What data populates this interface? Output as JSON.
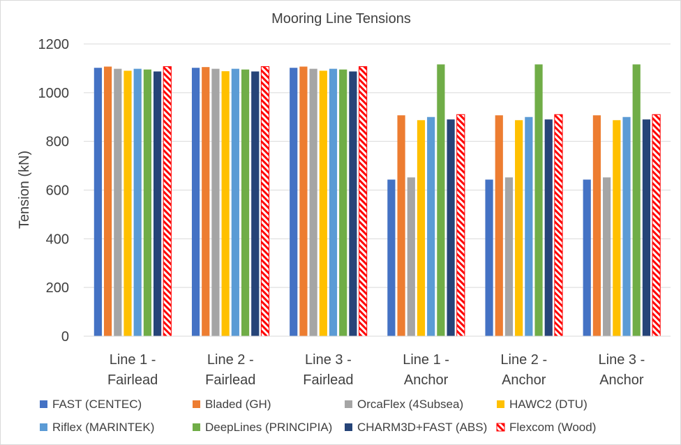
{
  "chart_data": {
    "type": "bar",
    "title": "Mooring Line Tensions",
    "xlabel": "",
    "ylabel": "Tension (kN)",
    "ylim": [
      0,
      1200
    ],
    "yticks": [
      0,
      200,
      400,
      600,
      800,
      1000,
      1200
    ],
    "grid": true,
    "legend_position": "bottom",
    "categories": [
      [
        "Line 1 -",
        "Fairlead"
      ],
      [
        "Line 2 -",
        "Fairlead"
      ],
      [
        "Line 3 -",
        "Fairlead"
      ],
      [
        "Line 1 -",
        "Anchor"
      ],
      [
        "Line 2 -",
        "Anchor"
      ],
      [
        "Line 3 -",
        "Anchor"
      ]
    ],
    "series": [
      {
        "name": "FAST (CENTEC)",
        "color": "#4472c4",
        "values": [
          1102,
          1102,
          1102,
          643,
          643,
          643
        ]
      },
      {
        "name": "Bladed (GH)",
        "color": "#ed7d31",
        "values": [
          1107,
          1105,
          1107,
          907,
          907,
          907
        ]
      },
      {
        "name": "OrcaFlex (4Subsea)",
        "color": "#a5a5a5",
        "values": [
          1098,
          1098,
          1098,
          652,
          652,
          652
        ]
      },
      {
        "name": "HAWC2 (DTU)",
        "color": "#ffc000",
        "values": [
          1090,
          1088,
          1090,
          887,
          887,
          887
        ]
      },
      {
        "name": "Riflex (MARINTEK)",
        "color": "#5b9bd5",
        "values": [
          1098,
          1098,
          1098,
          900,
          900,
          900
        ]
      },
      {
        "name": "DeepLines (PRINCIPIA)",
        "color": "#70ad47",
        "values": [
          1095,
          1095,
          1095,
          1116,
          1116,
          1116
        ]
      },
      {
        "name": "CHARM3D+FAST (ABS)",
        "color": "#264478",
        "values": [
          1087,
          1087,
          1087,
          890,
          890,
          890
        ]
      },
      {
        "name": "Flexcom (Wood)",
        "color": "#ff0000",
        "pattern": "hatched",
        "values": [
          1107,
          1107,
          1107,
          910,
          910,
          910
        ]
      }
    ]
  }
}
